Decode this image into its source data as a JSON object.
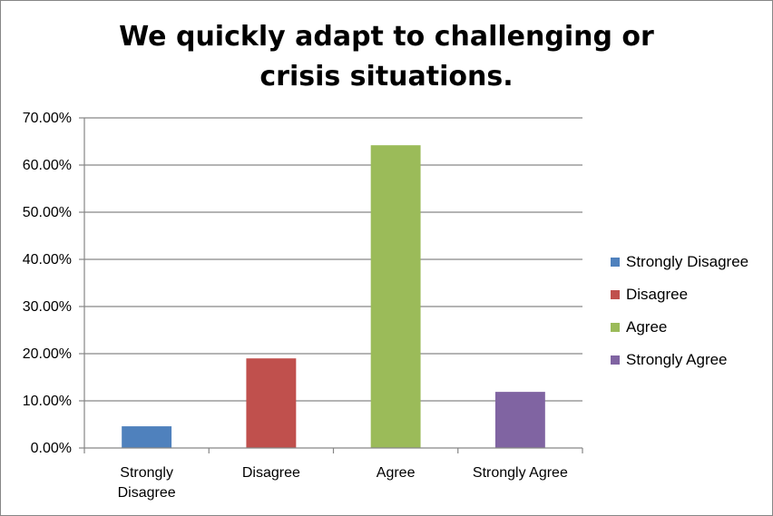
{
  "chart_data": {
    "type": "bar",
    "title": "We quickly adapt to challenging or crisis situations.",
    "categories": [
      "Strongly Disagree",
      "Disagree",
      "Agree",
      "Strongly Agree"
    ],
    "category_lines": [
      [
        "Strongly",
        "Disagree"
      ],
      [
        "Disagree"
      ],
      [
        "Agree"
      ],
      [
        "Strongly Agree"
      ]
    ],
    "values": [
      4.6,
      19.0,
      64.2,
      11.9
    ],
    "colors": [
      "#4F81BD",
      "#C0504D",
      "#9BBB59",
      "#8064A2"
    ],
    "ylim": [
      0,
      70
    ],
    "yticks": [
      "0.00%",
      "10.00%",
      "20.00%",
      "30.00%",
      "40.00%",
      "50.00%",
      "60.00%",
      "70.00%"
    ],
    "xlabel": "",
    "ylabel": "",
    "grid": true,
    "legend": {
      "position": "right",
      "entries": [
        "Strongly Disagree",
        "Disagree",
        "Agree",
        "Strongly Agree"
      ]
    }
  }
}
